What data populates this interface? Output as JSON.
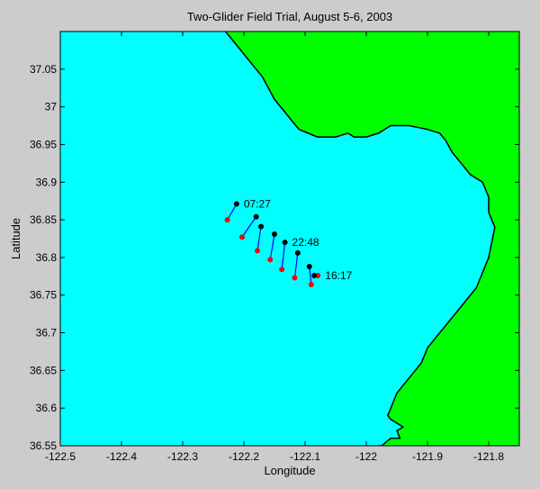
{
  "chart_data": {
    "type": "scatter",
    "title": "Two-Glider Field Trial, August 5-6, 2003",
    "xlabel": "Longitude",
    "ylabel": "Latitude",
    "xlim": [
      -122.5,
      -121.75
    ],
    "ylim": [
      36.55,
      37.1
    ],
    "xticks": [
      -122.5,
      -122.4,
      -122.3,
      -122.2,
      -122.1,
      -122,
      -121.9,
      -121.8
    ],
    "xtick_labels": [
      "-122.5",
      "-122.4",
      "-122.3",
      "-122.2",
      "-122.1",
      "-122",
      "-121.9",
      "-121.8"
    ],
    "yticks": [
      36.55,
      36.6,
      36.65,
      36.7,
      36.75,
      36.8,
      36.85,
      36.9,
      36.95,
      37,
      37.05
    ],
    "ytick_labels": [
      "36.55",
      "36.6",
      "36.65",
      "36.7",
      "36.75",
      "36.8",
      "36.85",
      "36.9",
      "36.95",
      "37",
      "37.05"
    ],
    "grid": false,
    "colors": {
      "water": "#00ffff",
      "land": "#00ff00",
      "start_marker": "#000000",
      "end_marker": "#ff0000",
      "track": "#0000ff",
      "figure_bg": "#cccccc"
    },
    "series": [
      {
        "x": [
          -122.212,
          -122.18,
          -122.172,
          -122.15,
          -122.133,
          -122.112,
          -122.093,
          -122.085
        ],
        "y": [
          36.871,
          36.854,
          36.841,
          36.831,
          36.82,
          36.806,
          36.788,
          36.776
        ]
      },
      {
        "x": [
          -122.227,
          -122.203,
          -122.178,
          -122.157,
          -122.138,
          -122.117,
          -122.09,
          -122.079
        ],
        "y": [
          36.85,
          36.827,
          36.809,
          36.797,
          36.784,
          36.773,
          36.764,
          36.776
        ]
      }
    ],
    "annotations": [
      {
        "text": "07:27",
        "x": -122.212,
        "y": 36.871
      },
      {
        "text": "22:48",
        "x": -122.133,
        "y": 36.82
      },
      {
        "text": "16:17",
        "x": -122.079,
        "y": 36.776
      }
    ],
    "coastline": {
      "x": [
        -122.23,
        -122.2,
        -122.17,
        -122.15,
        -122.13,
        -122.11,
        -122.08,
        -122.06,
        -122.05,
        -122.03,
        -122.02,
        -122.0,
        -121.98,
        -121.96,
        -121.93,
        -121.9,
        -121.88,
        -121.87,
        -121.86,
        -121.85,
        -121.84,
        -121.83,
        -121.81,
        -121.8,
        -121.8,
        -121.79,
        -121.795,
        -121.8,
        -121.81,
        -121.82,
        -121.84,
        -121.86,
        -121.88,
        -121.9,
        -121.91,
        -121.93,
        -121.95,
        -121.96,
        -121.965,
        -121.96,
        -121.95,
        -121.94,
        -121.95,
        -121.945,
        -121.96,
        -121.975,
        -121.98
      ],
      "y": [
        37.1,
        37.07,
        37.04,
        37.01,
        36.99,
        36.97,
        36.96,
        36.96,
        36.96,
        36.965,
        36.96,
        36.96,
        36.965,
        36.975,
        36.975,
        36.97,
        36.965,
        36.955,
        36.94,
        36.93,
        36.92,
        36.91,
        36.9,
        36.88,
        36.86,
        36.84,
        36.82,
        36.8,
        36.78,
        36.76,
        36.74,
        36.72,
        36.7,
        36.68,
        36.66,
        36.64,
        36.62,
        36.6,
        36.59,
        36.585,
        36.58,
        36.575,
        36.57,
        36.56,
        36.56,
        36.55,
        36.55
      ]
    }
  }
}
